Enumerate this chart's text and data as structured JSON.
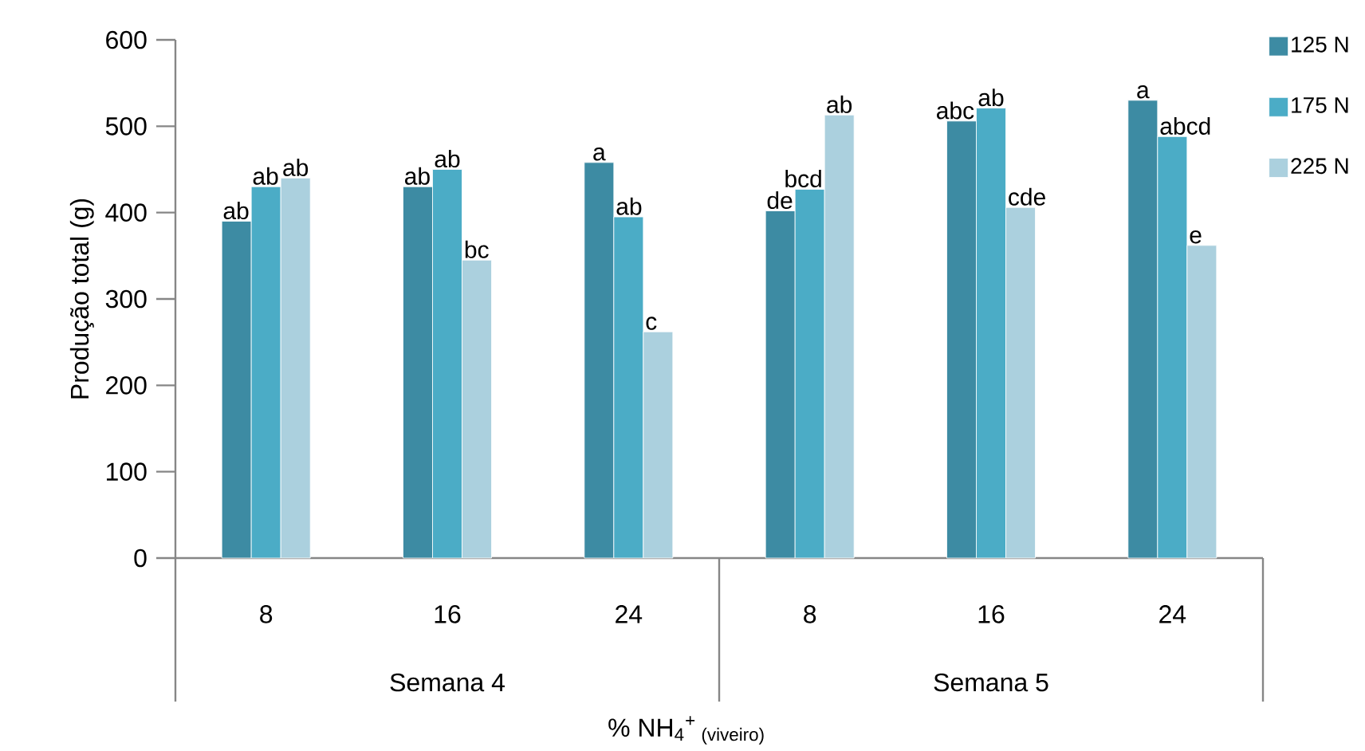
{
  "chart_data": {
    "type": "bar",
    "ylabel": "Produção total (g)",
    "xlabel": "% NH$_{4}$$^{+}$$_{ (viveiro)}$",
    "categories": [
      "8",
      "16",
      "24",
      "8",
      "16",
      "24"
    ],
    "annotations": [
      "Semana 4",
      "Semana 5"
    ],
    "ylim": [
      0,
      600
    ],
    "yticks": [
      0,
      100,
      200,
      300,
      400,
      500,
      600
    ],
    "grid": false,
    "legend": "right",
    "series": [
      {
        "name": "125 N",
        "color": "#3d8ba3",
        "values": [
          390,
          430,
          458,
          402,
          506,
          530
        ],
        "value_labels": [
          "ab",
          "ab",
          "a",
          "de",
          "abc",
          "a"
        ]
      },
      {
        "name": "175 N",
        "color": "#4bacc6",
        "values": [
          430,
          450,
          395,
          427,
          521,
          488
        ],
        "value_labels": [
          "ab",
          "ab",
          "ab",
          "bcd",
          "ab",
          "abcd"
        ]
      },
      {
        "name": "225 N",
        "color": "#abd0de",
        "values": [
          440,
          345,
          262,
          513,
          406,
          362
        ],
        "value_labels": [
          "ab",
          "bc",
          "c",
          "ab",
          "cde",
          "e"
        ]
      }
    ]
  }
}
